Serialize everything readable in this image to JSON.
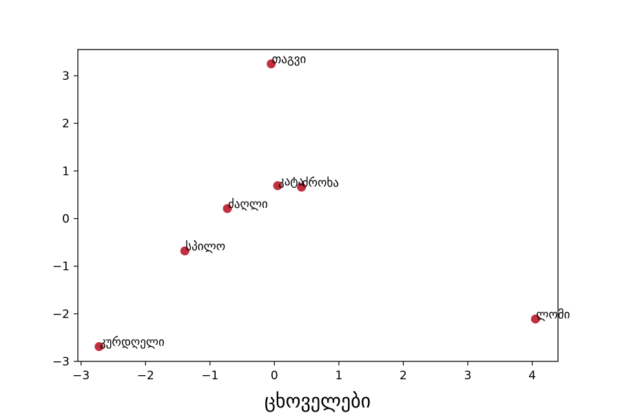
{
  "chart_data": {
    "type": "scatter",
    "title": "",
    "xlabel": "ცხოველები",
    "ylabel": "",
    "xlim": [
      -3.05,
      4.4
    ],
    "ylim": [
      -3.0,
      3.55
    ],
    "xticks": [
      -3,
      -2,
      -1,
      0,
      1,
      2,
      3,
      4
    ],
    "yticks": [
      -3,
      -2,
      -1,
      0,
      1,
      2,
      3
    ],
    "grid": false,
    "legend": "none",
    "color": "#c0303f",
    "points": [
      {
        "label": "თაგვი",
        "x": -0.05,
        "y": 3.25
      },
      {
        "label": "კატა",
        "x": 0.05,
        "y": 0.69
      },
      {
        "label": "ძროხა",
        "x": 0.42,
        "y": 0.66
      },
      {
        "label": "ძაღლი",
        "x": -0.73,
        "y": 0.21
      },
      {
        "label": "სპილო",
        "x": -1.39,
        "y": -0.68
      },
      {
        "label": "ლომი",
        "x": 4.05,
        "y": -2.11
      },
      {
        "label": "კურდღელი",
        "x": -2.72,
        "y": -2.69
      }
    ]
  }
}
